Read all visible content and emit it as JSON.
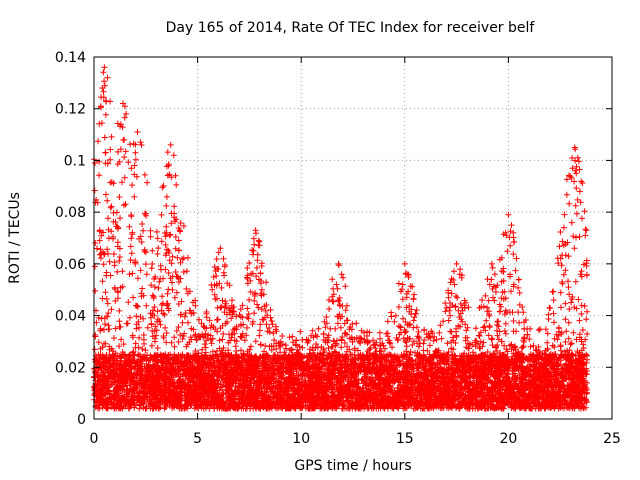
{
  "chart_data": {
    "type": "scatter",
    "title": "Day 165 of 2014, Rate Of TEC Index for receiver belf",
    "xlabel": "GPS time / hours",
    "ylabel": "ROTI / TECUs",
    "xlim": [
      0,
      25
    ],
    "ylim": [
      0,
      0.14
    ],
    "x_ticks": [
      0,
      5,
      10,
      15,
      20,
      25
    ],
    "x_tick_labels": [
      "0",
      "5",
      "10",
      "15",
      "20",
      "25"
    ],
    "y_ticks": [
      0,
      0.02,
      0.04,
      0.06,
      0.08,
      0.1,
      0.12,
      0.14
    ],
    "y_tick_labels": [
      "0",
      "0.02",
      "0.04",
      "0.06",
      "0.08",
      "0.1",
      "0.12",
      "0.14"
    ],
    "grid": true,
    "marker": "+",
    "series": [
      {
        "name": "ROTI",
        "color": "#ff0000",
        "x_range": [
          0,
          23.8
        ],
        "baseline_range": [
          0.005,
          0.025
        ],
        "envelope_peaks": [
          {
            "x": 0.5,
            "y": 0.136
          },
          {
            "x": 1.4,
            "y": 0.122
          },
          {
            "x": 2.1,
            "y": 0.111
          },
          {
            "x": 3.7,
            "y": 0.106
          },
          {
            "x": 6.1,
            "y": 0.066
          },
          {
            "x": 7.8,
            "y": 0.073
          },
          {
            "x": 11.8,
            "y": 0.06
          },
          {
            "x": 15.0,
            "y": 0.06
          },
          {
            "x": 17.5,
            "y": 0.06
          },
          {
            "x": 19.2,
            "y": 0.06
          },
          {
            "x": 20.0,
            "y": 0.079
          },
          {
            "x": 23.2,
            "y": 0.105
          }
        ]
      }
    ]
  }
}
